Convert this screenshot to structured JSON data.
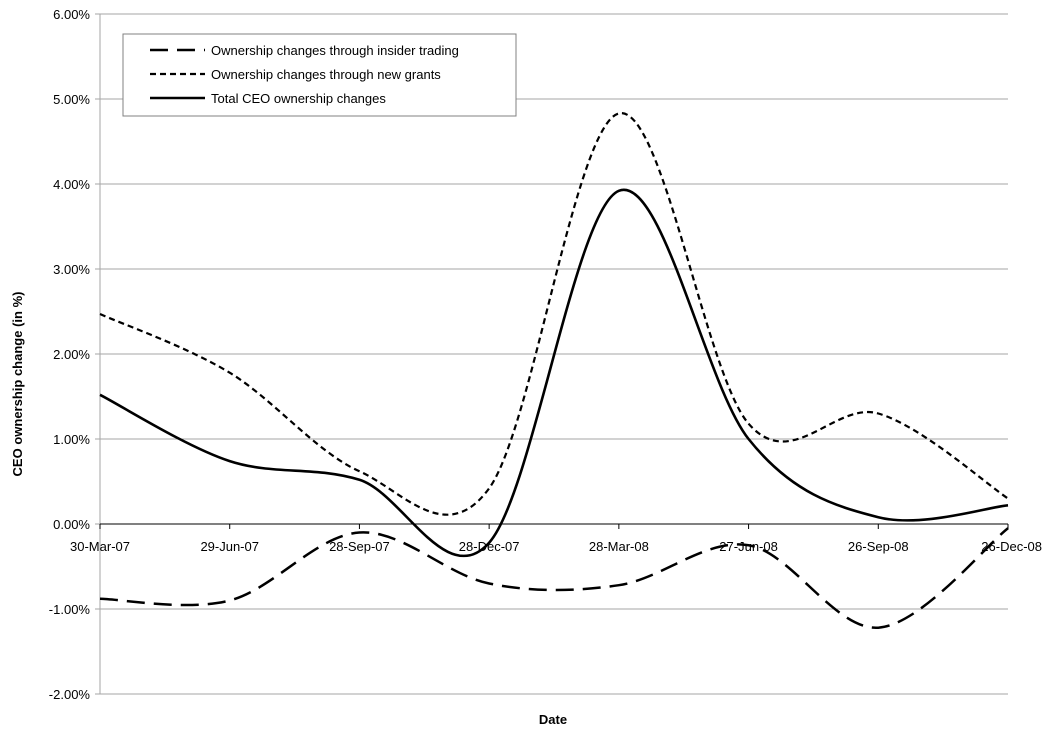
{
  "chart_data": {
    "type": "line",
    "title": "",
    "xlabel": "Date",
    "ylabel": "CEO ownership change (in %)",
    "x": [
      "30-Mar-07",
      "29-Jun-07",
      "28-Sep-07",
      "28-Dec-07",
      "28-Mar-08",
      "27-Jun-08",
      "26-Sep-08",
      "26-Dec-08"
    ],
    "x_tick_labels": [
      "30-Mar-07",
      "29-Jun-07",
      "28-Sep-07",
      "28-Dec-07",
      "28-Mar-08",
      "27-Jun-08",
      "26-Sep-08",
      "26-Dec-08"
    ],
    "y_tick_labels": [
      "-2.00%",
      "-1.00%",
      "0.00%",
      "1.00%",
      "2.00%",
      "3.00%",
      "4.00%",
      "5.00%",
      "6.00%"
    ],
    "ylim": [
      -2.0,
      6.0
    ],
    "y_unit": "%",
    "grid": true,
    "legend_position": "top-left",
    "series": [
      {
        "name": "Ownership changes through insider trading",
        "style": "long-dash",
        "color": "#000000",
        "values": [
          -0.88,
          -0.9,
          -0.1,
          -0.7,
          -0.72,
          -0.25,
          -1.22,
          -0.05
        ]
      },
      {
        "name": "Ownership changes through new grants",
        "style": "short-dash",
        "color": "#000000",
        "values": [
          2.47,
          1.78,
          0.62,
          0.42,
          4.83,
          1.18,
          1.3,
          0.3
        ]
      },
      {
        "name": "Total CEO ownership changes",
        "style": "solid",
        "color": "#000000",
        "values": [
          1.52,
          0.74,
          0.52,
          -0.22,
          3.92,
          1.0,
          0.08,
          0.22
        ]
      }
    ]
  }
}
